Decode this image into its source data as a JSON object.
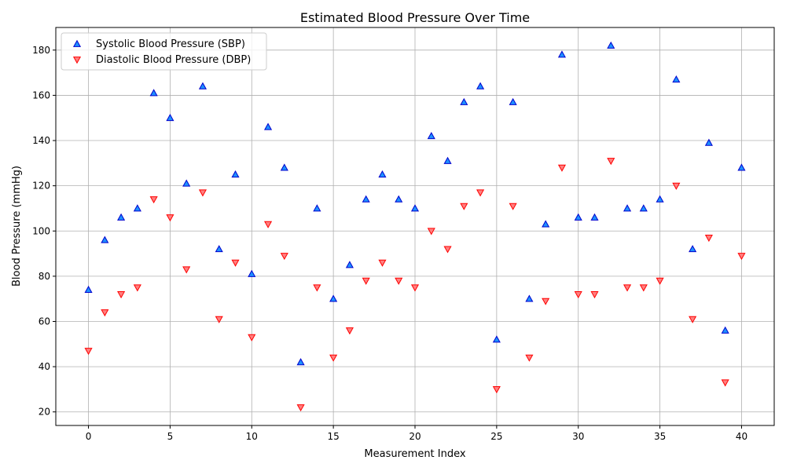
{
  "chart_data": {
    "type": "scatter",
    "title": "Estimated Blood Pressure Over Time",
    "xlabel": "Measurement Index",
    "ylabel": "Blood Pressure (mmHg)",
    "xlim": [
      -2,
      42
    ],
    "ylim": [
      14,
      190
    ],
    "xticks": [
      0,
      5,
      10,
      15,
      20,
      25,
      30,
      35,
      40
    ],
    "yticks": [
      20,
      40,
      60,
      80,
      100,
      120,
      140,
      160,
      180
    ],
    "grid": true,
    "legend_position": "top-left",
    "x": [
      0,
      1,
      2,
      3,
      4,
      5,
      6,
      7,
      8,
      9,
      10,
      11,
      12,
      13,
      14,
      15,
      16,
      17,
      18,
      19,
      20,
      21,
      22,
      23,
      24,
      25,
      26,
      27,
      28,
      29,
      30,
      31,
      32,
      33,
      34,
      35,
      36,
      37,
      38,
      39,
      40
    ],
    "series": [
      {
        "name": "Systolic Blood Pressure (SBP)",
        "marker": "triangle-up",
        "fill": "#1e90ff",
        "stroke": "#0000cd",
        "values": [
          74,
          96,
          106,
          110,
          161,
          150,
          121,
          164,
          92,
          125,
          81,
          146,
          128,
          42,
          110,
          70,
          85,
          114,
          125,
          114,
          110,
          142,
          131,
          157,
          164,
          52,
          157,
          70,
          103,
          178,
          106,
          106,
          182,
          110,
          110,
          114,
          167,
          92,
          139,
          56,
          128
        ]
      },
      {
        "name": "Diastolic Blood Pressure (DBP)",
        "marker": "triangle-down",
        "fill": "#ff7f7f",
        "stroke": "#ff0000",
        "values": [
          47,
          64,
          72,
          75,
          114,
          106,
          83,
          117,
          61,
          86,
          53,
          103,
          89,
          22,
          75,
          44,
          56,
          78,
          86,
          78,
          75,
          100,
          92,
          111,
          117,
          30,
          111,
          44,
          69,
          128,
          72,
          72,
          131,
          75,
          75,
          78,
          120,
          61,
          97,
          33,
          89
        ]
      }
    ]
  }
}
